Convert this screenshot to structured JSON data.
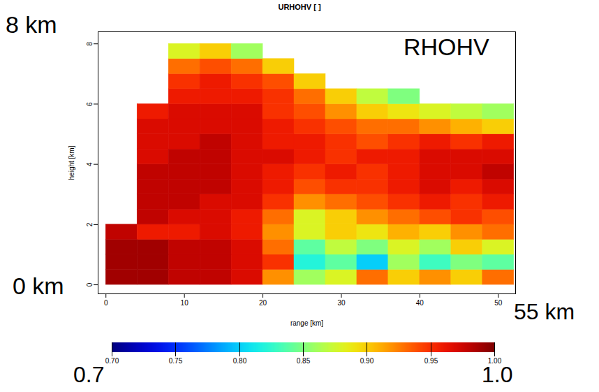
{
  "chart_data": {
    "type": "heatmap",
    "title": "URHOHV [ ]",
    "x_label": "range [km]",
    "y_label": "height [km]",
    "xlim": [
      -1,
      52.2
    ],
    "ylim": [
      -0.3,
      8.4
    ],
    "xticks": [
      0,
      10,
      20,
      30,
      40,
      50
    ],
    "yticks": [
      0,
      2,
      4,
      6,
      8
    ],
    "x_edges": [
      0,
      4,
      8,
      12,
      16,
      20,
      24,
      28,
      32,
      36,
      40,
      44,
      48,
      52
    ],
    "y_edges": [
      0,
      0.5,
      1,
      1.5,
      2,
      2.5,
      3,
      3.5,
      4,
      4.5,
      5,
      5.5,
      6,
      6.5,
      7,
      7.5,
      8
    ],
    "cells": [
      [
        0.99,
        0.99,
        0.98,
        0.98,
        0.97,
        0.92,
        0.86,
        0.88,
        0.93,
        0.9,
        0.92,
        0.9,
        0.93
      ],
      [
        0.99,
        0.99,
        0.98,
        0.98,
        0.97,
        0.95,
        0.82,
        0.84,
        0.8,
        0.86,
        0.83,
        0.85,
        0.84
      ],
      [
        0.99,
        0.99,
        0.98,
        0.98,
        0.97,
        0.93,
        0.84,
        0.87,
        0.85,
        0.88,
        0.86,
        0.9,
        0.88
      ],
      [
        0.98,
        0.96,
        0.96,
        0.97,
        0.96,
        0.92,
        0.88,
        0.9,
        0.89,
        0.91,
        0.9,
        0.92,
        0.93
      ],
      [
        null,
        0.98,
        0.97,
        0.97,
        0.96,
        0.93,
        0.88,
        0.9,
        0.92,
        0.93,
        0.94,
        0.95,
        0.94
      ],
      [
        null,
        0.98,
        0.98,
        0.97,
        0.97,
        0.95,
        0.92,
        0.93,
        0.94,
        0.95,
        0.96,
        0.95,
        0.96
      ],
      [
        null,
        0.98,
        0.98,
        0.98,
        0.97,
        0.96,
        0.94,
        0.95,
        0.95,
        0.96,
        0.97,
        0.96,
        0.97
      ],
      [
        null,
        0.98,
        0.98,
        0.98,
        0.97,
        0.96,
        0.95,
        0.96,
        0.95,
        0.96,
        0.97,
        0.97,
        0.98
      ],
      [
        null,
        0.97,
        0.98,
        0.98,
        0.97,
        0.97,
        0.96,
        0.95,
        0.96,
        0.96,
        0.97,
        0.97,
        0.97
      ],
      [
        null,
        0.97,
        0.97,
        0.98,
        0.97,
        0.96,
        0.96,
        0.95,
        0.94,
        0.95,
        0.96,
        0.95,
        0.96
      ],
      [
        null,
        0.97,
        0.97,
        0.97,
        0.97,
        0.96,
        0.95,
        0.94,
        0.93,
        0.93,
        0.92,
        0.91,
        0.9
      ],
      [
        null,
        0.96,
        0.97,
        0.97,
        0.97,
        0.95,
        0.94,
        0.92,
        0.9,
        0.89,
        0.88,
        0.87,
        0.86
      ],
      [
        null,
        null,
        0.96,
        0.96,
        0.96,
        0.95,
        0.93,
        0.9,
        0.87,
        0.85,
        null,
        null,
        null
      ],
      [
        null,
        null,
        0.95,
        0.96,
        0.95,
        0.94,
        0.9,
        null,
        null,
        null,
        null,
        null,
        null
      ],
      [
        null,
        null,
        0.93,
        0.94,
        0.93,
        0.9,
        null,
        null,
        null,
        null,
        null,
        null,
        null
      ],
      [
        null,
        null,
        0.88,
        0.9,
        0.86,
        null,
        null,
        null,
        null,
        null,
        null,
        null,
        null
      ]
    ],
    "colorbar": {
      "range": [
        0.7,
        1.0
      ],
      "ticks": [
        {
          "value": 0.7,
          "label": "0.70"
        },
        {
          "value": 0.75,
          "label": "0.75"
        },
        {
          "value": 0.8,
          "label": "0.80"
        },
        {
          "value": 0.85,
          "label": "0.85"
        },
        {
          "value": 0.9,
          "label": "0.90"
        },
        {
          "value": 0.95,
          "label": "0.95"
        },
        {
          "value": 1.0,
          "label": "1.00"
        }
      ]
    },
    "annotations": [
      "8 km",
      "RHOHV",
      "0 km",
      "55 km",
      "0.7",
      "1.0"
    ]
  }
}
